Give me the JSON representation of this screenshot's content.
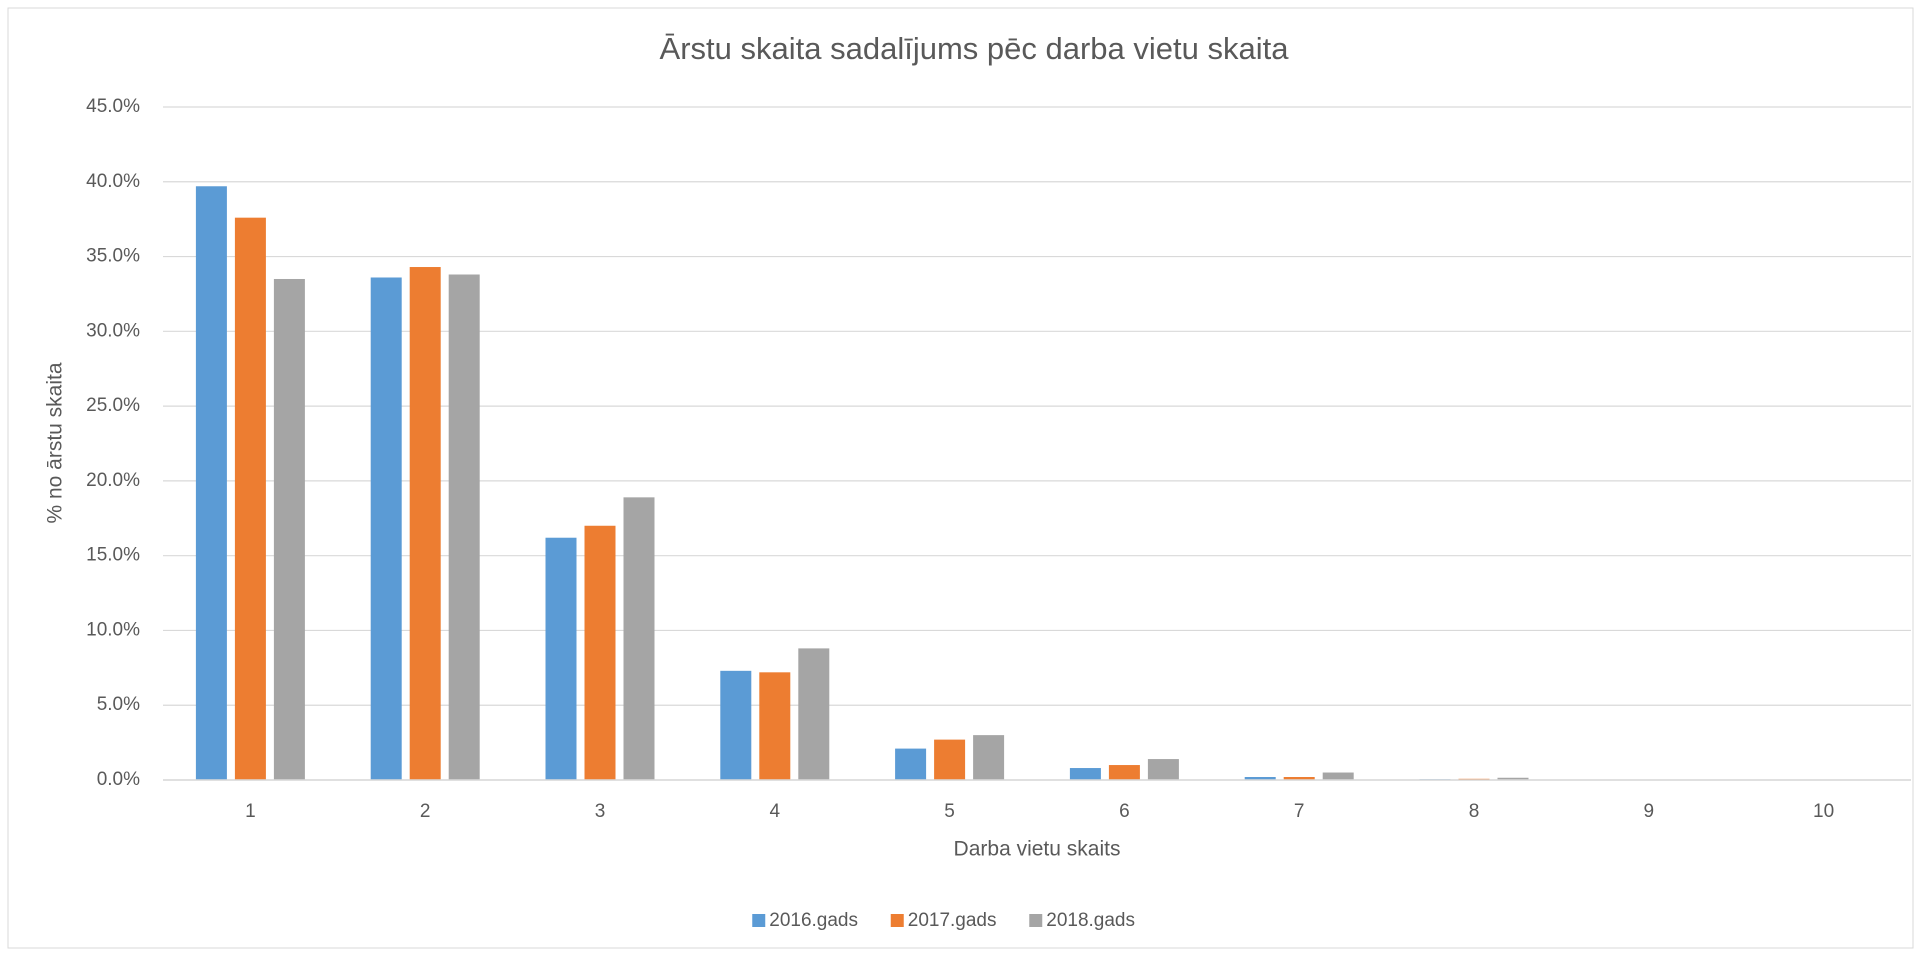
{
  "chart_data": {
    "type": "bar",
    "title": "Ārstu skaita sadalījums pēc darba vietu skaita",
    "x_label": "Darba vietu skaits",
    "y_label": "% no ārstu skaita",
    "categories": [
      "1",
      "2",
      "3",
      "4",
      "5",
      "6",
      "7",
      "8",
      "9",
      "10"
    ],
    "series": [
      {
        "name": "2016.gads",
        "color": "#5b9bd5",
        "values": [
          39.7,
          33.6,
          16.2,
          7.3,
          2.1,
          0.8,
          0.2,
          0.05,
          0.02,
          0.01
        ]
      },
      {
        "name": "2017.gads",
        "color": "#ed7d31",
        "values": [
          37.6,
          34.3,
          17.0,
          7.2,
          2.7,
          1.0,
          0.2,
          0.08,
          0.02,
          0.01
        ]
      },
      {
        "name": "2018.gads",
        "color": "#a5a5a5",
        "values": [
          33.5,
          33.8,
          18.9,
          8.8,
          3.0,
          1.4,
          0.5,
          0.15,
          0.03,
          0.01
        ]
      }
    ],
    "ylim": [
      0,
      45
    ],
    "yticks": [
      {
        "value": 0,
        "label": "0.0%"
      },
      {
        "value": 5,
        "label": "5.0%"
      },
      {
        "value": 10,
        "label": "10.0%"
      },
      {
        "value": 15,
        "label": "15.0%"
      },
      {
        "value": 20,
        "label": "20.0%"
      },
      {
        "value": 25,
        "label": "25.0%"
      },
      {
        "value": 30,
        "label": "30.0%"
      },
      {
        "value": 35,
        "label": "35.0%"
      },
      {
        "value": 40,
        "label": "40.0%"
      },
      {
        "value": 45,
        "label": "45.0%"
      }
    ],
    "grid": true,
    "legend": "bottom"
  }
}
